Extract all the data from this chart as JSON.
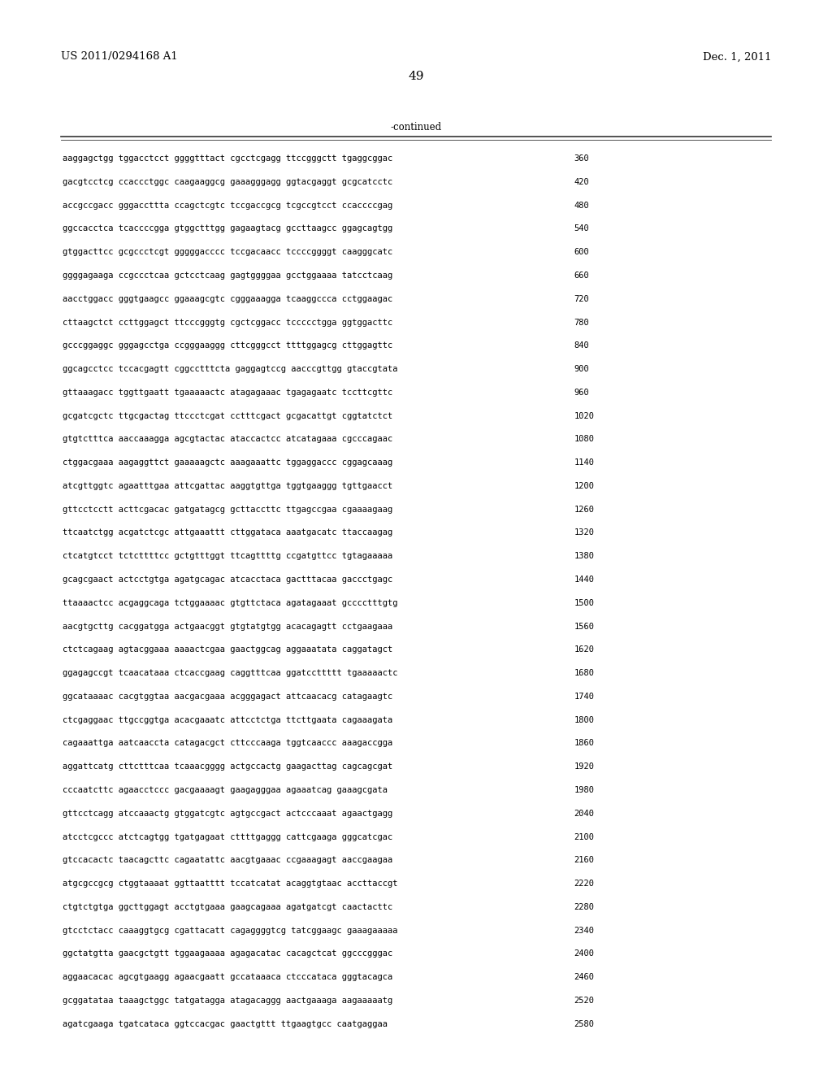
{
  "header_left": "US 2011/0294168 A1",
  "header_right": "Dec. 1, 2011",
  "page_number": "49",
  "continued_label": "-continued",
  "bg_color": "#ffffff",
  "text_color": "#000000",
  "seq_font_size": 7.5,
  "header_font_size": 9.5,
  "page_num_font_size": 11,
  "sequences": [
    [
      "aaggagctgg tggacctcct ggggtttact cgcctcgagg ttccgggctt tgaggcggac",
      "360"
    ],
    [
      "gacgtcctcg ccaccctggc caagaaggcg gaaagggagg ggtacgaggt gcgcatcctc",
      "420"
    ],
    [
      "accgccgacc gggaccttta ccagctcgtc tccgaccgcg tcgccgtcct ccaccccgag",
      "480"
    ],
    [
      "ggccacctca tcaccccgga gtggctttgg gagaagtacg gccttaagcc ggagcagtgg",
      "540"
    ],
    [
      "gtggacttcc gcgccctcgt gggggacccc tccgacaacc tccccggggt caagggcatc",
      "600"
    ],
    [
      "ggggagaaga ccgccctcaa gctcctcaag gagtggggaa gcctggaaaa tatcctcaag",
      "660"
    ],
    [
      "aacctggacc gggtgaagcc ggaaagcgtc cgggaaagga tcaaggccca cctggaagac",
      "720"
    ],
    [
      "cttaagctct ccttggagct ttcccgggtg cgctcggacc tccccctgga ggtggacttc",
      "780"
    ],
    [
      "gcccggaggc gggagcctga ccgggaaggg cttcgggcct ttttggagcg cttggagttc",
      "840"
    ],
    [
      "ggcagcctcc tccacgagtt cggcctttcta gaggagtccg aacccgttgg gtaccgtata",
      "900"
    ],
    [
      "gttaaagacc tggttgaatt tgaaaaactc atagagaaac tgagagaatc tccttcgttc",
      "960"
    ],
    [
      "gcgatcgctc ttgcgactag ttccctcgat cctttcgact gcgacattgt cggtatctct",
      "1020"
    ],
    [
      "gtgtctttca aaccaaagga agcgtactac ataccactcc atcatagaaa cgcccagaac",
      "1080"
    ],
    [
      "ctggacgaaa aagaggttct gaaaaagctc aaagaaattc tggaggaccc cggagcaaag",
      "1140"
    ],
    [
      "atcgttggtc agaatttgaa attcgattac aaggtgttga tggtgaaggg tgttgaacct",
      "1200"
    ],
    [
      "gttcctcctt acttcgacac gatgatagcg gcttaccttc ttgagccgaa cgaaaagaag",
      "1260"
    ],
    [
      "ttcaatctgg acgatctcgc attgaaattt cttggataca aaatgacatc ttaccaagag",
      "1320"
    ],
    [
      "ctcatgtcct tctcttttcc gctgtttggt ttcagttttg ccgatgttcc tgtagaaaaa",
      "1380"
    ],
    [
      "gcagcgaact actcctgtga agatgcagac atcacctaca gactttacaa gaccctgagc",
      "1440"
    ],
    [
      "ttaaaactcc acgaggcaga tctggaaaac gtgttctaca agatagaaat gcccctttgtg",
      "1500"
    ],
    [
      "aacgtgcttg cacggatgga actgaacggt gtgtatgtgg acacagagtt cctgaagaaa",
      "1560"
    ],
    [
      "ctctcagaag agtacggaaa aaaactcgaa gaactggcag aggaaatata caggatagct",
      "1620"
    ],
    [
      "ggagagccgt tcaacataaa ctcaccgaag caggtttcaa ggatccttttt tgaaaaactc",
      "1680"
    ],
    [
      "ggcataaaac cacgtggtaa aacgacgaaa acgggagact attcaacacg catagaagtc",
      "1740"
    ],
    [
      "ctcgaggaac ttgccggtga acacgaaatc attcctctga ttcttgaata cagaaagata",
      "1800"
    ],
    [
      "cagaaattga aatcaaccta catagacgct cttcccaaga tggtcaaccc aaagaccgga",
      "1860"
    ],
    [
      "aggattcatg cttctttcaa tcaaacgggg actgccactg gaagacttag cagcagcgat",
      "1920"
    ],
    [
      "cccaatcttc agaacctccc gacgaaaagt gaagagggaa agaaatcag gaaagcgata",
      "1980"
    ],
    [
      "gttcctcagg atccaaactg gtggatcgtc agtgccgact actcccaaat agaactgagg",
      "2040"
    ],
    [
      "atcctcgccc atctcagtgg tgatgagaat cttttgaggg cattcgaaga gggcatcgac",
      "2100"
    ],
    [
      "gtccacactc taacagcttc cagaatattc aacgtgaaac ccgaaagagt aaccgaagaa",
      "2160"
    ],
    [
      "atgcgccgcg ctggtaaaat ggttaatttt tccatcatat acaggtgtaac accttaccgt",
      "2220"
    ],
    [
      "ctgtctgtga ggcttggagt acctgtgaaa gaagcagaaa agatgatcgt caactacttc",
      "2280"
    ],
    [
      "gtcctctacc caaaggtgcg cgattacatt cagaggggtcg tatcggaagc gaaagaaaaa",
      "2340"
    ],
    [
      "ggctatgtta gaacgctgtt tggaagaaaa agagacatac cacagctcat ggcccgggac",
      "2400"
    ],
    [
      "aggaacacac agcgtgaagg agaacgaatt gccataaaca ctcccataca gggtacagca",
      "2460"
    ],
    [
      "gcggatataa taaagctggc tatgatagga atagacaggg aactgaaaga aagaaaaatg",
      "2520"
    ],
    [
      "agatcgaaga tgatcataca ggtccacgac gaactgttt ttgaagtgcc caatgaggaa",
      "2580"
    ]
  ]
}
